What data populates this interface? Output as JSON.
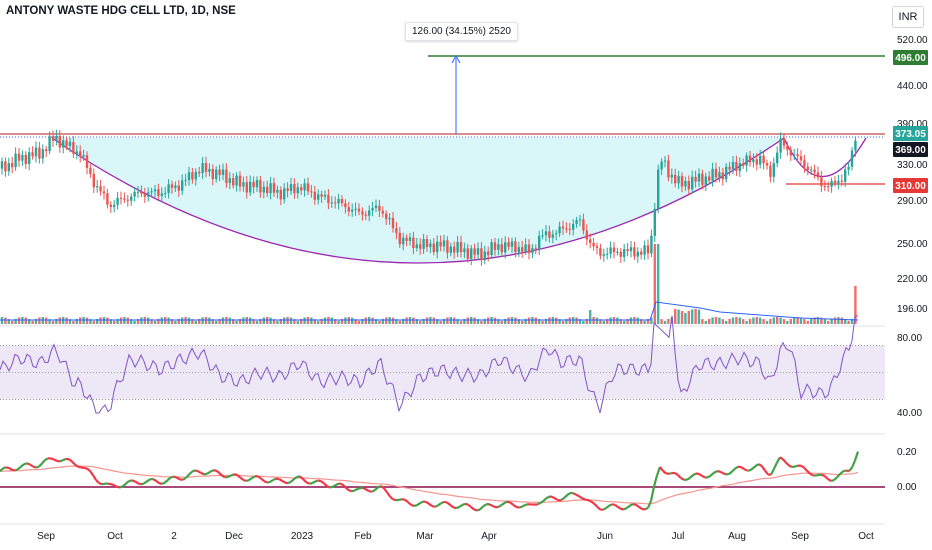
{
  "header": {
    "symbol_title": "ANTONY WASTE HDG CELL LTD, 1D, NSE",
    "currency_button": "INR"
  },
  "annotation": {
    "measure_label": "126.00 (34.15%) 2520"
  },
  "colors": {
    "up": "#26a69a",
    "down": "#ef5350",
    "cup_fill": "#d9f6f9",
    "cup_line": "#9c27b0",
    "target": "#2e7d32",
    "breakout": "#37b37e",
    "stop": "#e53935",
    "rsi": "#7e57c2",
    "osc_up": "#43a047",
    "osc_down": "#f23645",
    "signal": "#f7948e",
    "baseline": "#880e4f"
  },
  "chart_data": [
    {
      "type": "candlestick",
      "title": "ANTONY WASTE HDG CELL LTD, 1D, NSE",
      "x_tick_labels": [
        "Sep",
        "Oct",
        "2",
        "Dec",
        "2023",
        "Feb",
        "Mar",
        "Apr",
        "Jun",
        "Jul",
        "Aug",
        "Sep",
        "Oct"
      ],
      "y_tick_labels": [
        "520.00",
        "440.00",
        "390.00",
        "330.00",
        "290.00",
        "250.00",
        "220.00",
        "196.00"
      ],
      "price_levels": [
        {
          "label": "496.00",
          "value": 496,
          "name": "target"
        },
        {
          "label": "373.05",
          "value": 373.05,
          "name": "last-price"
        },
        {
          "label": "369.00",
          "value": 369,
          "name": "breakout"
        },
        {
          "label": "310.00",
          "value": 310,
          "name": "stop"
        }
      ],
      "series": [
        {
          "name": "price",
          "points": [
            [
              0,
              335
            ],
            [
              20,
              345
            ],
            [
              40,
              350
            ],
            [
              55,
              365
            ],
            [
              65,
              358
            ],
            [
              80,
              350
            ],
            [
              95,
              320
            ],
            [
              110,
              300
            ],
            [
              120,
              305
            ],
            [
              140,
              312
            ],
            [
              160,
              312
            ],
            [
              180,
              320
            ],
            [
              200,
              335
            ],
            [
              220,
              330
            ],
            [
              240,
              320
            ],
            [
              260,
              318
            ],
            [
              280,
              312
            ],
            [
              300,
              318
            ],
            [
              320,
              308
            ],
            [
              340,
              302
            ],
            [
              360,
              292
            ],
            [
              380,
              298
            ],
            [
              400,
              268
            ],
            [
              420,
              262
            ],
            [
              440,
              262
            ],
            [
              460,
              258
            ],
            [
              480,
              253
            ],
            [
              500,
              262
            ],
            [
              520,
              260
            ],
            [
              530,
              255
            ],
            [
              540,
              270
            ],
            [
              560,
              276
            ],
            [
              580,
              285
            ],
            [
              592,
              260
            ],
            [
              600,
              255
            ],
            [
              620,
              256
            ],
            [
              640,
              256
            ],
            [
              650,
              256
            ],
            [
              655,
              305
            ],
            [
              660,
              345
            ],
            [
              670,
              330
            ],
            [
              680,
              320
            ],
            [
              700,
              325
            ],
            [
              720,
              330
            ],
            [
              740,
              340
            ],
            [
              760,
              345
            ],
            [
              770,
              330
            ],
            [
              780,
              360
            ],
            [
              790,
              352
            ],
            [
              800,
              342
            ],
            [
              810,
              335
            ],
            [
              820,
              322
            ],
            [
              830,
              318
            ],
            [
              840,
              325
            ],
            [
              850,
              338
            ],
            [
              858,
              380
            ]
          ]
        }
      ]
    },
    {
      "type": "line",
      "name": "RSI",
      "y_tick_labels": [
        "80.00",
        "40.00"
      ]
    },
    {
      "type": "line",
      "name": "oscillator",
      "y_tick_labels": [
        "0.20",
        "0.00"
      ]
    }
  ]
}
